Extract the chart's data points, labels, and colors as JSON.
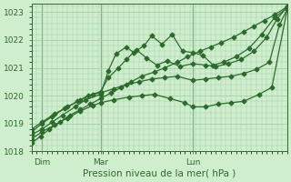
{
  "title": "",
  "xlabel": "Pression niveau de la mer( hPa )",
  "ylabel": "",
  "ylim": [
    1018,
    1023.3
  ],
  "yticks": [
    1018,
    1019,
    1020,
    1021,
    1022,
    1023
  ],
  "xlim": [
    0,
    1.0
  ],
  "background_color": "#ceeece",
  "grid_color": "#a0c8a0",
  "line_color": "#2d6b2d",
  "marker": "D",
  "marker_size": 2.5,
  "line_width": 0.9,
  "xtick_labels": [
    "Dim",
    "Mar",
    "Lun"
  ],
  "xtick_positions": [
    0.04,
    0.27,
    0.63
  ],
  "series": [
    {
      "x": [
        0.0,
        0.035,
        0.07,
        0.11,
        0.15,
        0.19,
        0.23,
        0.27,
        0.31,
        0.35,
        0.39,
        0.43,
        0.48,
        0.52,
        0.57,
        0.61,
        0.66,
        0.7,
        0.74,
        0.79,
        0.83,
        0.87,
        0.91,
        0.95,
        1.0
      ],
      "y": [
        1018.3,
        1018.55,
        1018.8,
        1019.05,
        1019.3,
        1019.5,
        1019.7,
        1019.9,
        1020.1,
        1020.3,
        1020.5,
        1020.7,
        1020.85,
        1021.0,
        1021.2,
        1021.4,
        1021.6,
        1021.75,
        1021.9,
        1022.1,
        1022.3,
        1022.5,
        1022.7,
        1022.9,
        1023.2
      ]
    },
    {
      "x": [
        0.0,
        0.04,
        0.08,
        0.12,
        0.17,
        0.21,
        0.27,
        0.3,
        0.33,
        0.37,
        0.4,
        0.44,
        0.47,
        0.51,
        0.55,
        0.59,
        0.63,
        0.67,
        0.71,
        0.75,
        0.8,
        0.85,
        0.9,
        0.95,
        1.0
      ],
      "y": [
        1018.6,
        1018.8,
        1019.05,
        1019.3,
        1019.6,
        1019.85,
        1020.05,
        1020.9,
        1021.5,
        1021.75,
        1021.55,
        1021.8,
        1022.15,
        1021.85,
        1022.2,
        1021.6,
        1021.55,
        1021.45,
        1021.1,
        1021.2,
        1021.4,
        1021.7,
        1022.2,
        1022.8,
        1023.15
      ]
    },
    {
      "x": [
        0.0,
        0.04,
        0.08,
        0.13,
        0.18,
        0.22,
        0.27,
        0.3,
        0.34,
        0.37,
        0.41,
        0.45,
        0.49,
        0.53,
        0.58,
        0.63,
        0.68,
        0.72,
        0.77,
        0.82,
        0.87,
        0.92,
        0.96,
        1.0
      ],
      "y": [
        1018.7,
        1019.0,
        1019.25,
        1019.55,
        1019.8,
        1020.0,
        1020.15,
        1020.65,
        1021.0,
        1021.3,
        1021.65,
        1021.35,
        1021.1,
        1021.25,
        1021.05,
        1021.15,
        1021.1,
        1021.05,
        1021.15,
        1021.3,
        1021.6,
        1022.1,
        1022.75,
        1023.2
      ]
    },
    {
      "x": [
        0.0,
        0.04,
        0.09,
        0.14,
        0.19,
        0.24,
        0.27,
        0.32,
        0.37,
        0.42,
        0.47,
        0.52,
        0.57,
        0.63,
        0.68,
        0.73,
        0.78,
        0.83,
        0.88,
        0.93,
        0.97,
        1.0
      ],
      "y": [
        1018.8,
        1019.05,
        1019.35,
        1019.6,
        1019.85,
        1020.05,
        1020.1,
        1020.25,
        1020.4,
        1020.5,
        1020.6,
        1020.65,
        1020.7,
        1020.55,
        1020.6,
        1020.65,
        1020.7,
        1020.8,
        1020.95,
        1021.2,
        1022.55,
        1023.1
      ]
    },
    {
      "x": [
        0.0,
        0.04,
        0.09,
        0.14,
        0.19,
        0.24,
        0.27,
        0.32,
        0.38,
        0.43,
        0.48,
        0.54,
        0.6,
        0.63,
        0.68,
        0.73,
        0.78,
        0.83,
        0.89,
        0.94,
        1.0
      ],
      "y": [
        1018.45,
        1018.7,
        1018.95,
        1019.2,
        1019.45,
        1019.65,
        1019.75,
        1019.85,
        1019.95,
        1020.0,
        1020.05,
        1019.9,
        1019.75,
        1019.6,
        1019.6,
        1019.7,
        1019.75,
        1019.8,
        1020.05,
        1020.3,
        1023.1
      ]
    }
  ],
  "vline_positions": [
    0.04,
    0.27,
    0.63
  ],
  "vline_color": "#2d6b2d",
  "font_color": "#2d6b2d",
  "tick_font_size": 6.5,
  "xlabel_font_size": 7.5
}
